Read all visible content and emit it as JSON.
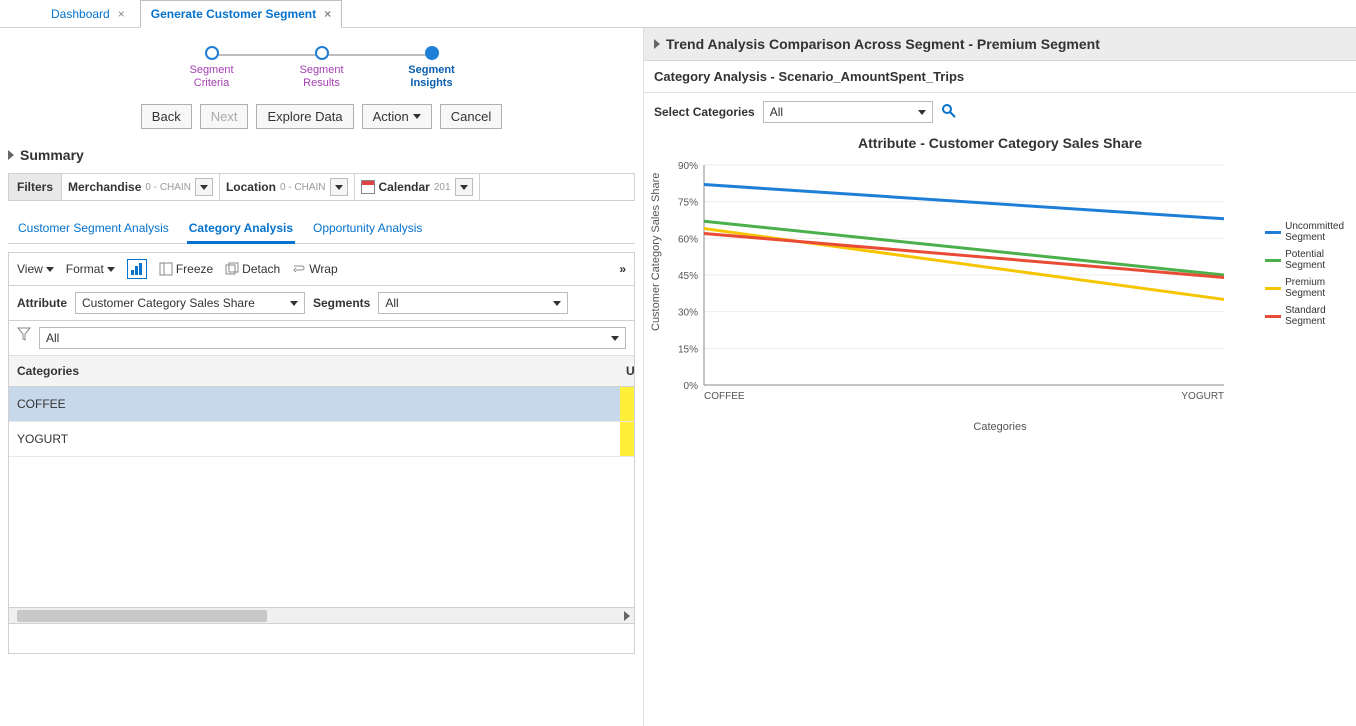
{
  "tabs": [
    {
      "label": "Dashboard",
      "active": false
    },
    {
      "label": "Generate Customer Segment",
      "active": true
    }
  ],
  "wizard": [
    {
      "line1": "Segment",
      "line2": "Criteria",
      "state": "done"
    },
    {
      "line1": "Segment",
      "line2": "Results",
      "state": "done"
    },
    {
      "line1": "Segment",
      "line2": "Insights",
      "state": "active"
    }
  ],
  "buttons": {
    "back": "Back",
    "next": "Next",
    "explore": "Explore Data",
    "action": "Action",
    "cancel": "Cancel"
  },
  "summary": {
    "label": "Summary"
  },
  "filters": {
    "label": "Filters",
    "merchandise": {
      "label": "Merchandise",
      "hint": "0 - CHAIN"
    },
    "location": {
      "label": "Location",
      "hint": "0 - CHAIN"
    },
    "calendar": {
      "label": "Calendar",
      "hint": "201"
    }
  },
  "subtabs": [
    {
      "label": "Customer Segment Analysis",
      "active": false
    },
    {
      "label": "Category Analysis",
      "active": true
    },
    {
      "label": "Opportunity Analysis",
      "active": false
    }
  ],
  "toolbar": {
    "view": "View",
    "format": "Format",
    "freeze": "Freeze",
    "detach": "Detach",
    "wrap": "Wrap",
    "more": "»"
  },
  "attrRow": {
    "attrLabel": "Attribute",
    "attrValue": "Customer Category Sales Share",
    "segLabel": "Segments",
    "segValue": "All"
  },
  "table": {
    "filterAll": "All",
    "colCategories": "Categories",
    "colU": "U",
    "rows": [
      {
        "cat": "COFFEE"
      },
      {
        "cat": "YOGURT"
      }
    ]
  },
  "trend": {
    "title": "Trend Analysis Comparison Across Segment - Premium Segment",
    "subtitle": "Category Analysis - Scenario_AmountSpent_Trips",
    "selectLabel": "Select Categories",
    "selectValue": "All"
  },
  "chart": {
    "title": "Attribute - Customer Category Sales Share",
    "ylabel": "Customer Category Sales Share",
    "xlabel": "Categories",
    "ylim": [
      0,
      90
    ],
    "ytick_step": 15,
    "xcats": [
      "COFFEE",
      "YOGURT"
    ],
    "grid_color": "#eeeeee",
    "axis_color": "#888888",
    "bg": "#ffffff",
    "series": [
      {
        "name": "Uncommitted Segment",
        "color": "#1f7fd6",
        "values": [
          82,
          68
        ],
        "width": 3
      },
      {
        "name": "Potential Segment",
        "color": "#4bb04b",
        "values": [
          67,
          45
        ],
        "width": 3
      },
      {
        "name": "Premium Segment",
        "color": "#f6c500",
        "values": [
          64,
          35
        ],
        "width": 3
      },
      {
        "name": "Standard Segment",
        "color": "#e94b35",
        "values": [
          62,
          44
        ],
        "width": 3
      }
    ]
  }
}
